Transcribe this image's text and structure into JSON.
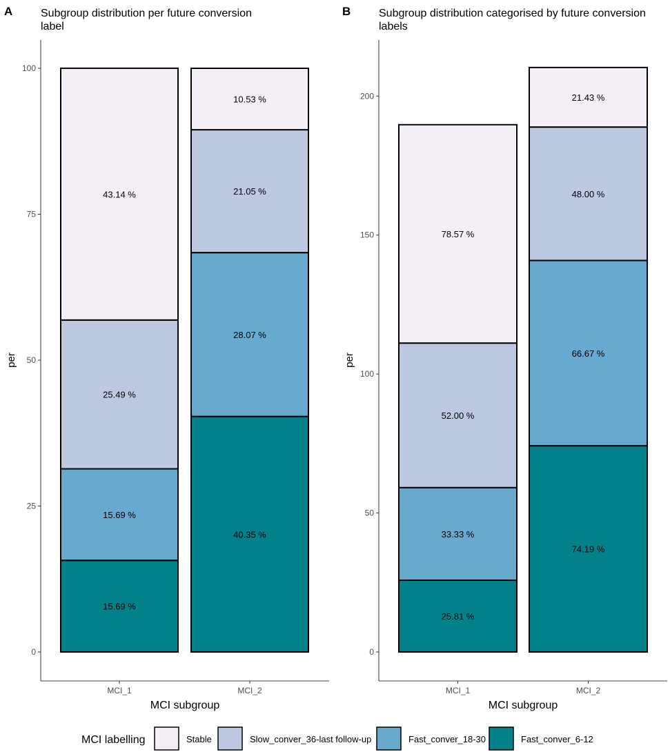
{
  "legend": {
    "title": "MCI labelling",
    "items": [
      {
        "label": "Stable",
        "color": "#F4EEF7"
      },
      {
        "label": "Slow_conver_36-last follow-up",
        "color": "#BCC9E1"
      },
      {
        "label": "Fast_conver_18-30",
        "color": "#67A9CF"
      },
      {
        "label": "Fast_conver_6-12",
        "color": "#02818A"
      }
    ]
  },
  "chart_data": [
    {
      "panel_label": "A",
      "type": "bar",
      "stacked": true,
      "title": "Subgroup distribution per future conversion label",
      "xlabel": "MCI subgroup",
      "ylabel": "per",
      "ylim": [
        0,
        100
      ],
      "yticks": [
        0,
        25,
        50,
        75,
        100
      ],
      "grid": false,
      "categories": [
        "MCI_1",
        "MCI_2"
      ],
      "series": [
        {
          "name": "Fast_conver_6-12",
          "values": [
            15.69,
            40.35
          ],
          "labels": [
            "15.69 %",
            "40.35 %"
          ]
        },
        {
          "name": "Fast_conver_18-30",
          "values": [
            15.69,
            28.07
          ],
          "labels": [
            "15.69 %",
            "28.07 %"
          ]
        },
        {
          "name": "Slow_conver_36-last follow-up",
          "values": [
            25.49,
            21.05
          ],
          "labels": [
            "25.49 %",
            "21.05 %"
          ]
        },
        {
          "name": "Stable",
          "values": [
            43.14,
            10.53
          ],
          "labels": [
            "43.14 %",
            "10.53 %"
          ]
        }
      ]
    },
    {
      "panel_label": "B",
      "type": "bar",
      "stacked": true,
      "title": "Subgroup distribution categorised by future conversion labels",
      "xlabel": "MCI subgroup",
      "ylabel": "per",
      "ylim": [
        0,
        210
      ],
      "yticks": [
        0,
        50,
        100,
        150,
        200
      ],
      "grid": false,
      "categories": [
        "MCI_1",
        "MCI_2"
      ],
      "series": [
        {
          "name": "Fast_conver_6-12",
          "values": [
            25.81,
            74.19
          ],
          "labels": [
            "25.81 %",
            "74.19 %"
          ]
        },
        {
          "name": "Fast_conver_18-30",
          "values": [
            33.33,
            66.67
          ],
          "labels": [
            "33.33 %",
            "66.67 %"
          ]
        },
        {
          "name": "Slow_conver_36-last follow-up",
          "values": [
            52.0,
            48.0
          ],
          "labels": [
            "52.00 %",
            "48.00 %"
          ]
        },
        {
          "name": "Stable",
          "values": [
            78.57,
            21.43
          ],
          "labels": [
            "78.57 %",
            "21.43 %"
          ]
        }
      ]
    }
  ]
}
